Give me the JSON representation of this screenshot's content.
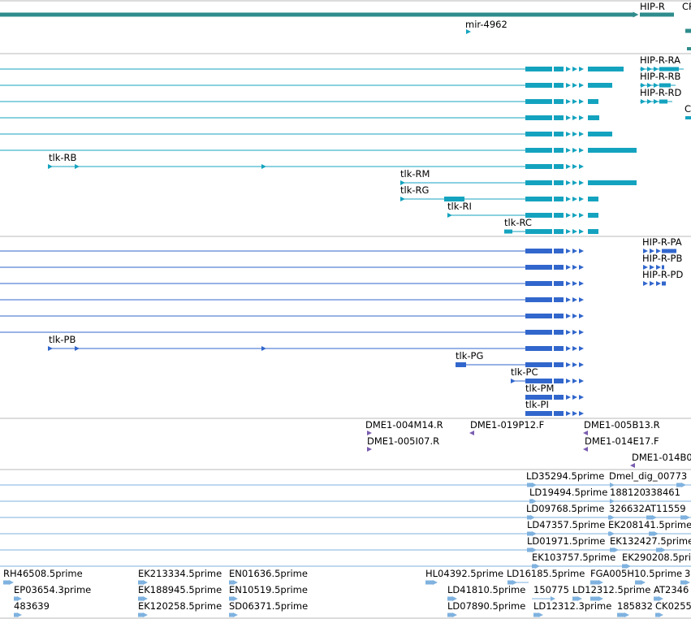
{
  "genome_browser": {
    "gene_track": {
      "labels": [
        "HIP-R",
        "CP",
        "mir-4962"
      ]
    },
    "transcript_track": {
      "labels": [
        "HIP-R-RA",
        "HIP-R-RB",
        "HIP-R-RD",
        "tlk-RB",
        "tlk-RM",
        "tlk-RG",
        "tlk-RI",
        "tlk-RC"
      ]
    },
    "protein_track": {
      "labels": [
        "HIP-R-PA",
        "HIP-R-PB",
        "HIP-R-PD",
        "tlk-PB",
        "tlk-PG",
        "tlk-PC",
        "tlk-PM",
        "tlk-PI"
      ]
    },
    "clone_track": {
      "labels": [
        "DME1-004M14.R",
        "DME1-005I07.R",
        "DME1-019P12.F",
        "DME1-005B13.R",
        "DME1-014E17.F",
        "DME1-014B0"
      ]
    },
    "est_track_1": {
      "labels": [
        "LD35294.5prime",
        "Dmel_dig_00773",
        "LD19494.5prime",
        "188120",
        "338461",
        "LD09768.5prime",
        "326632",
        "AT11559",
        "LD47357.5prime",
        "EK208141.5prime",
        "LD01971.5prime",
        "EK132427.5prime",
        "EK103757.5prime",
        "EK290208.5prime"
      ]
    },
    "est_track_2": {
      "labels": [
        "RH46508.5prime",
        "EP03654.3prime",
        "483639",
        "EK213334.5prime",
        "EK188945.5prime",
        "EK120258.5prime",
        "EN01636.5prime",
        "EN10519.5prime",
        "SD06371.5prime",
        "HL04392.5prime",
        "LD41810.5prime",
        "LD07890.5prime",
        "LD16185.5prime",
        "150775",
        "LD12312.5prime",
        "LD12312.3prime",
        "185832",
        "FGA005H10.5prime",
        "AT2346",
        "CK0255",
        "3"
      ]
    },
    "colors": {
      "gene": "#2f8c8c",
      "transcript": "#14a3bf",
      "protein": "#3166cc",
      "clone": "#7a5cb0",
      "est": "#7fb2df",
      "divider": "#b8b8b8"
    }
  }
}
